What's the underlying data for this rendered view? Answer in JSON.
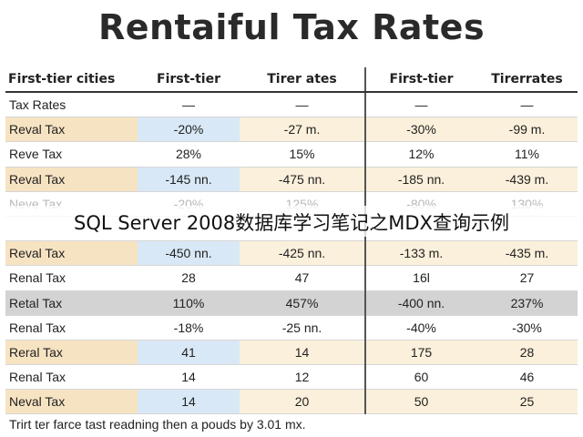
{
  "title": "Rentaiful Tax Rates",
  "table": {
    "headers": [
      "First-tier cities",
      "First-tier",
      "Tirer ates",
      "First-tier",
      "Tirerrates"
    ],
    "rows": [
      {
        "label": "Tax Rates",
        "cells": [
          "—",
          "—",
          "—",
          "—"
        ],
        "style": "plain"
      },
      {
        "label": "Reval Tax",
        "cells": [
          "-20%",
          "-27 m.",
          "-30%",
          "-99 m."
        ],
        "style": "tan"
      },
      {
        "label": "Reve Tax",
        "cells": [
          "28%",
          "15%",
          "12%",
          "11%"
        ],
        "style": "plain"
      },
      {
        "label": "Reval Tax",
        "cells": [
          "-145 nn.",
          "-475 nn.",
          "-185 nn.",
          "-439 m."
        ],
        "style": "tan"
      },
      {
        "label": "Neve Tax",
        "cells": [
          "-20%",
          "125%",
          "-80%",
          "130%"
        ],
        "style": "faded"
      },
      {
        "label": "",
        "cells": [
          "",
          "",
          "",
          ""
        ],
        "style": "plain"
      },
      {
        "label": "Reval Tax",
        "cells": [
          "-450 nn.",
          "-425 nn.",
          "-133 m.",
          "-435 m."
        ],
        "style": "tan"
      },
      {
        "label": "Renal Tax",
        "cells": [
          "28",
          "47",
          "16l",
          "27"
        ],
        "style": "plain"
      },
      {
        "label": "Retal Tax",
        "cells": [
          "110%",
          "457%",
          "-400 nn.",
          "237%"
        ],
        "style": "gray"
      },
      {
        "label": "Renal Tax",
        "cells": [
          "-18%",
          "-25 nn.",
          "-40%",
          "-30%"
        ],
        "style": "plain"
      },
      {
        "label": "Reral Tax",
        "cells": [
          "41",
          "14",
          "175",
          "28"
        ],
        "style": "tan"
      },
      {
        "label": "Renal Tax",
        "cells": [
          "14",
          "12",
          "60",
          "46"
        ],
        "style": "plain"
      },
      {
        "label": "Neval Tax",
        "cells": [
          "14",
          "20",
          "50",
          "25"
        ],
        "style": "tan"
      }
    ]
  },
  "footnote": "Trirt ter farce tast readning then a pouds by 3.01 mx.",
  "overlay_caption": "SQL Server 2008数据库学习笔记之MDX查询示例"
}
